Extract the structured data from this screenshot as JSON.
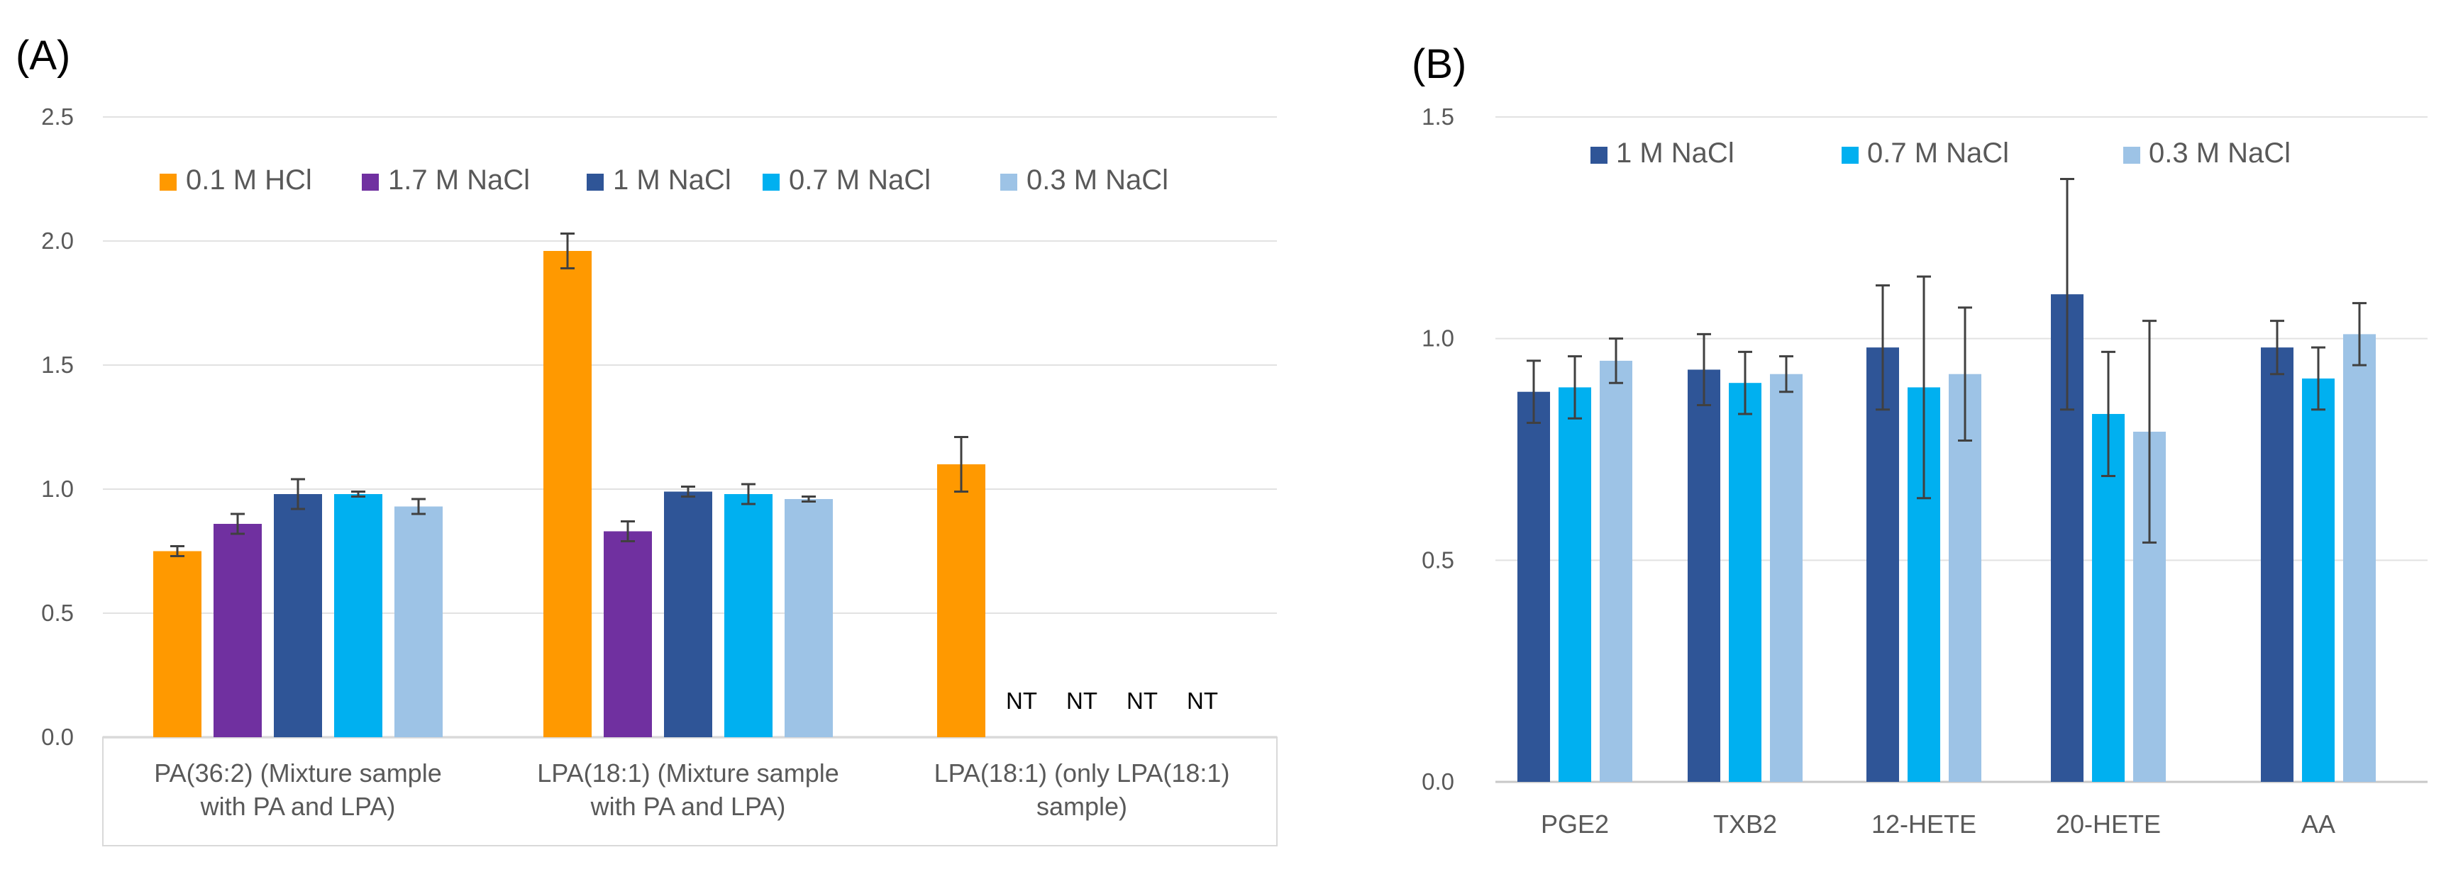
{
  "chart_data": [
    {
      "panel_label": "(A)",
      "type": "bar",
      "categories": [
        [
          "PA(36:2)  (Mixture sample",
          "with PA and LPA)"
        ],
        [
          "LPA(18:1) (Mixture sample",
          "with PA and LPA)"
        ],
        [
          "LPA(18:1) (only LPA(18:1)",
          "sample)"
        ]
      ],
      "ylim": [
        0,
        2.5
      ],
      "yticks": [
        "0.0",
        "0.5",
        "1.0",
        "1.5",
        "2.0",
        "2.5"
      ],
      "ytick_values": [
        0,
        0.5,
        1.0,
        1.5,
        2.0,
        2.5
      ],
      "grid": true,
      "legend_position": "top",
      "series": [
        {
          "name": "0.1 M HCl",
          "color": "#FF9900",
          "values": [
            0.75,
            1.96,
            1.1
          ],
          "errors": [
            0.02,
            0.07,
            0.11
          ]
        },
        {
          "name": "1.7 M NaCl",
          "color": "#7030A0",
          "values": [
            0.86,
            0.83,
            null
          ],
          "errors": [
            0.04,
            0.04,
            null
          ]
        },
        {
          "name": "1 M NaCl",
          "color": "#2F5597",
          "values": [
            0.98,
            0.99,
            null
          ],
          "errors": [
            0.06,
            0.02,
            null
          ]
        },
        {
          "name": "0.7 M NaCl",
          "color": "#00B0F0",
          "values": [
            0.98,
            0.98,
            null
          ],
          "errors": [
            0.01,
            0.04,
            null
          ]
        },
        {
          "name": "0.3 M NaCl",
          "color": "#9DC3E6",
          "values": [
            0.93,
            0.96,
            null
          ],
          "errors": [
            0.03,
            0.01,
            null
          ]
        }
      ],
      "annotations": [
        {
          "series": "1.7 M NaCl",
          "category_index": 2,
          "text": "NT"
        },
        {
          "series": "1 M NaCl",
          "category_index": 2,
          "text": "NT"
        },
        {
          "series": "0.7 M NaCl",
          "category_index": 2,
          "text": "NT"
        },
        {
          "series": "0.3 M NaCl",
          "category_index": 2,
          "text": "NT"
        }
      ]
    },
    {
      "panel_label": "(B)",
      "type": "bar",
      "categories": [
        [
          "PGE2"
        ],
        [
          "TXB2"
        ],
        [
          "12-HETE"
        ],
        [
          "20-HETE"
        ],
        [
          "AA"
        ]
      ],
      "ylim": [
        0,
        1.5
      ],
      "yticks": [
        "0.0",
        "0.5",
        "1.0",
        "1.5"
      ],
      "ytick_values": [
        0,
        0.5,
        1.0,
        1.5
      ],
      "grid": true,
      "legend_position": "top",
      "series": [
        {
          "name": "1 M NaCl",
          "color": "#2F5597",
          "values": [
            0.88,
            0.93,
            0.98,
            1.1,
            0.98
          ],
          "errors": [
            0.07,
            0.08,
            0.14,
            0.26,
            0.06
          ]
        },
        {
          "name": "0.7 M NaCl",
          "color": "#00B0F0",
          "values": [
            0.89,
            0.9,
            0.89,
            0.83,
            0.91
          ],
          "errors": [
            0.07,
            0.07,
            0.25,
            0.14,
            0.07
          ]
        },
        {
          "name": "0.3 M NaCl",
          "color": "#9DC3E6",
          "values": [
            0.95,
            0.92,
            0.92,
            0.79,
            1.01
          ],
          "errors": [
            0.05,
            0.04,
            0.15,
            0.25,
            0.07
          ]
        }
      ],
      "annotations": []
    }
  ]
}
